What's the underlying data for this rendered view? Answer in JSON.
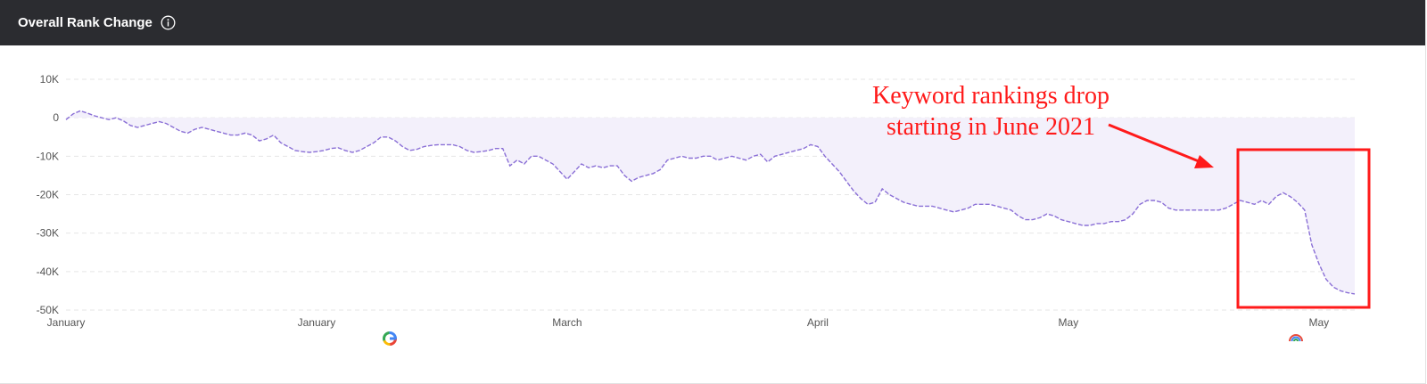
{
  "header": {
    "title": "Overall Rank Change"
  },
  "icons": {
    "info": "info-circle-icon",
    "google": "google-logo-icon",
    "update": "rainbow-update-icon"
  },
  "colors": {
    "line": "#8a6fd6",
    "area": "#f3f0fb",
    "annotation": "#ff1a1a",
    "header_bg": "#2b2c30"
  },
  "annotation": {
    "line1": "Keyword rankings drop",
    "line2": "starting in June 2021"
  },
  "chart_data": {
    "type": "area",
    "title": "Overall Rank Change",
    "xlabel": "",
    "ylabel": "",
    "ylim": [
      -50000,
      10000
    ],
    "yticks": [
      10000,
      0,
      -10000,
      -20000,
      -30000,
      -40000,
      -50000
    ],
    "ytick_labels": [
      "10K",
      "0",
      "-10K",
      "-20K",
      "-30K",
      "-40K",
      "-50K"
    ],
    "xtick_labels": [
      "January",
      "January",
      "March",
      "April",
      "May",
      "May"
    ],
    "xtick_index": [
      0,
      35,
      70,
      105,
      140,
      175
    ],
    "grid": true,
    "legend": "none",
    "series": [
      {
        "values": [
          -500,
          1000,
          1800,
          1200,
          500,
          0,
          -500,
          0,
          -800,
          -2000,
          -2500,
          -2000,
          -1500,
          -1000,
          -1500,
          -2500,
          -3500,
          -4000,
          -3000,
          -2500,
          -3000,
          -3500,
          -4000,
          -4500,
          -4500,
          -4000,
          -4500,
          -6000,
          -5500,
          -4500,
          -6500,
          -7500,
          -8500,
          -8800,
          -9000,
          -8800,
          -8500,
          -8000,
          -7800,
          -8500,
          -9000,
          -8500,
          -7500,
          -6500,
          -5000,
          -5000,
          -6000,
          -7500,
          -8500,
          -8200,
          -7500,
          -7200,
          -7000,
          -7000,
          -7000,
          -7500,
          -8500,
          -9000,
          -8800,
          -8500,
          -8000,
          -8000,
          -12500,
          -11000,
          -12000,
          -10000,
          -10000,
          -11000,
          -12000,
          -14000,
          -16000,
          -14000,
          -12000,
          -13000,
          -12500,
          -13000,
          -12500,
          -12500,
          -15000,
          -16500,
          -15500,
          -15000,
          -14500,
          -13500,
          -11000,
          -10500,
          -10000,
          -10500,
          -10500,
          -10000,
          -10000,
          -11000,
          -10500,
          -10000,
          -10500,
          -11000,
          -10000,
          -9500,
          -11500,
          -10000,
          -9500,
          -9000,
          -8500,
          -8000,
          -7000,
          -7500,
          -10000,
          -12000,
          -14000,
          -16500,
          -19000,
          -21000,
          -22500,
          -22000,
          -18500,
          -20000,
          -21000,
          -22000,
          -22500,
          -23000,
          -23000,
          -23000,
          -23500,
          -24000,
          -24500,
          -24000,
          -23500,
          -22500,
          -22500,
          -22500,
          -23000,
          -23500,
          -24000,
          -25500,
          -26500,
          -26500,
          -26000,
          -25000,
          -25500,
          -26500,
          -27000,
          -27500,
          -28000,
          -28000,
          -27500,
          -27500,
          -27000,
          -27000,
          -26500,
          -25000,
          -22500,
          -21500,
          -21500,
          -22000,
          -23500,
          -24000,
          -24000,
          -24000,
          -24000,
          -24000,
          -24000,
          -24000,
          -23500,
          -22500,
          -21500,
          -22000,
          -22500,
          -21500,
          -22500,
          -20500,
          -19500,
          -20500,
          -22000,
          -24000,
          -33000,
          -38000,
          -42000,
          -44000,
          -45000,
          -45500,
          -45800
        ]
      }
    ]
  }
}
